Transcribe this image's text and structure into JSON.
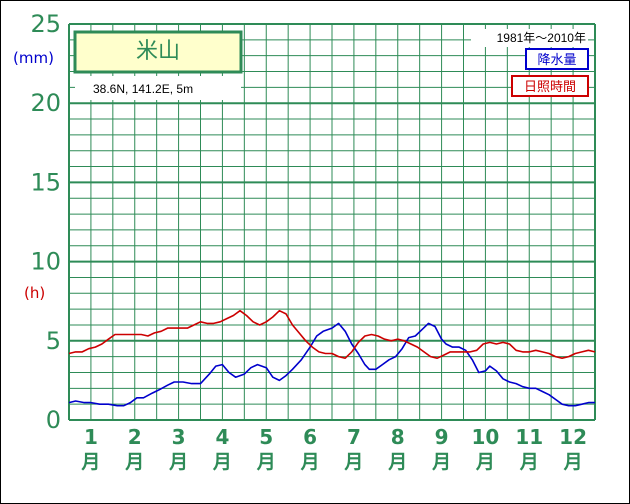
{
  "chart_data": {
    "type": "line",
    "title": "米山",
    "location": "38.6N,  141.2E,  5m",
    "period": "1981年〜2010年",
    "y_units": {
      "left_top": "(mm)",
      "left_mid": "(h)"
    },
    "ylim": [
      0,
      25
    ],
    "y_ticks": [
      "0",
      "5",
      "10",
      "15",
      "20",
      "25"
    ],
    "x_ticks": [
      {
        "num": "1",
        "char": "月"
      },
      {
        "num": "2",
        "char": "月"
      },
      {
        "num": "3",
        "char": "月"
      },
      {
        "num": "4",
        "char": "月"
      },
      {
        "num": "5",
        "char": "月"
      },
      {
        "num": "6",
        "char": "月"
      },
      {
        "num": "7",
        "char": "月"
      },
      {
        "num": "8",
        "char": "月"
      },
      {
        "num": "9",
        "char": "月"
      },
      {
        "num": "10",
        "char": "月"
      },
      {
        "num": "11",
        "char": "月"
      },
      {
        "num": "12",
        "char": "月"
      }
    ],
    "xlim": [
      0.5,
      12.5
    ],
    "grid": true,
    "colors": {
      "grid": "#2e8b57",
      "precip": "#0000cc",
      "sun": "#cc0000",
      "station_box": "#ffffcc"
    },
    "series": [
      {
        "name": "降水量",
        "color": "#0000cc",
        "x": [
          0.5,
          0.65,
          0.85,
          1.0,
          1.2,
          1.4,
          1.6,
          1.75,
          1.9,
          2.05,
          2.2,
          2.4,
          2.55,
          2.75,
          2.9,
          3.1,
          3.3,
          3.5,
          3.7,
          3.85,
          4.0,
          4.15,
          4.3,
          4.5,
          4.65,
          4.8,
          5.0,
          5.15,
          5.3,
          5.45,
          5.6,
          5.8,
          6.0,
          6.15,
          6.3,
          6.5,
          6.65,
          6.8,
          6.95,
          7.1,
          7.25,
          7.35,
          7.5,
          7.65,
          7.8,
          7.95,
          8.1,
          8.25,
          8.4,
          8.55,
          8.7,
          8.85,
          9.0,
          9.1,
          9.25,
          9.4,
          9.55,
          9.7,
          9.85,
          10.0,
          10.1,
          10.25,
          10.4,
          10.55,
          10.7,
          10.85,
          11.0,
          11.15,
          11.3,
          11.45,
          11.6,
          11.75,
          11.9,
          12.05,
          12.2,
          12.35,
          12.5
        ],
        "y": [
          1.1,
          1.2,
          1.1,
          1.1,
          1.0,
          1.0,
          0.9,
          0.9,
          1.1,
          1.4,
          1.4,
          1.7,
          1.9,
          2.2,
          2.4,
          2.4,
          2.3,
          2.3,
          2.9,
          3.4,
          3.5,
          3.0,
          2.7,
          2.9,
          3.3,
          3.5,
          3.3,
          2.7,
          2.5,
          2.8,
          3.2,
          3.8,
          4.6,
          5.3,
          5.6,
          5.8,
          6.1,
          5.6,
          4.8,
          4.2,
          3.5,
          3.2,
          3.2,
          3.5,
          3.8,
          4.0,
          4.5,
          5.2,
          5.3,
          5.7,
          6.1,
          5.9,
          5.1,
          4.8,
          4.6,
          4.6,
          4.4,
          3.8,
          3.0,
          3.1,
          3.4,
          3.1,
          2.6,
          2.4,
          2.3,
          2.1,
          2.0,
          2.0,
          1.8,
          1.6,
          1.3,
          1.0,
          0.9,
          0.9,
          1.0,
          1.1,
          1.1
        ]
      },
      {
        "name": "日照時間",
        "color": "#cc0000",
        "x": [
          0.5,
          0.65,
          0.8,
          0.95,
          1.1,
          1.25,
          1.4,
          1.55,
          1.7,
          1.85,
          2.0,
          2.15,
          2.3,
          2.45,
          2.6,
          2.75,
          2.9,
          3.05,
          3.2,
          3.35,
          3.5,
          3.65,
          3.8,
          3.95,
          4.1,
          4.25,
          4.4,
          4.55,
          4.7,
          4.85,
          5.0,
          5.15,
          5.3,
          5.45,
          5.6,
          5.75,
          5.9,
          6.05,
          6.2,
          6.35,
          6.5,
          6.65,
          6.8,
          6.95,
          7.1,
          7.25,
          7.4,
          7.55,
          7.7,
          7.85,
          8.0,
          8.15,
          8.3,
          8.45,
          8.6,
          8.75,
          8.9,
          9.05,
          9.2,
          9.35,
          9.5,
          9.65,
          9.8,
          9.95,
          10.1,
          10.25,
          10.4,
          10.55,
          10.7,
          10.85,
          11.0,
          11.15,
          11.3,
          11.45,
          11.6,
          11.75,
          11.9,
          12.05,
          12.2,
          12.35,
          12.5
        ],
        "y": [
          4.2,
          4.3,
          4.3,
          4.5,
          4.6,
          4.8,
          5.1,
          5.4,
          5.4,
          5.4,
          5.4,
          5.4,
          5.3,
          5.5,
          5.6,
          5.8,
          5.8,
          5.8,
          5.8,
          6.0,
          6.2,
          6.1,
          6.1,
          6.2,
          6.4,
          6.6,
          6.9,
          6.6,
          6.2,
          6.0,
          6.2,
          6.5,
          6.9,
          6.7,
          6.0,
          5.5,
          5.0,
          4.6,
          4.3,
          4.2,
          4.2,
          4.0,
          3.9,
          4.3,
          4.9,
          5.3,
          5.4,
          5.3,
          5.1,
          5.0,
          5.1,
          5.0,
          4.8,
          4.6,
          4.3,
          4.0,
          3.9,
          4.1,
          4.3,
          4.3,
          4.3,
          4.3,
          4.4,
          4.8,
          4.9,
          4.8,
          4.9,
          4.8,
          4.4,
          4.3,
          4.3,
          4.4,
          4.3,
          4.2,
          4.0,
          3.9,
          4.0,
          4.2,
          4.3,
          4.4,
          4.3
        ]
      }
    ],
    "legend": [
      {
        "label": "降水量",
        "color": "#0000cc"
      },
      {
        "label": "日照時間",
        "color": "#cc0000"
      }
    ]
  }
}
